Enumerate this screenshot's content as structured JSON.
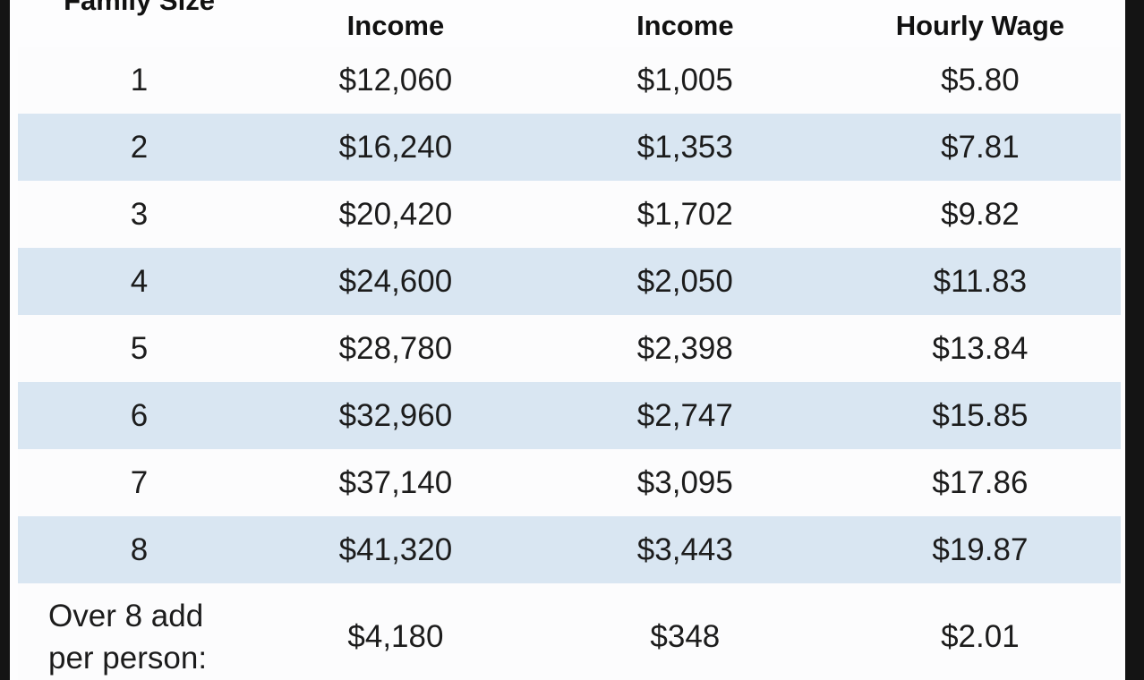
{
  "chart_data": {
    "type": "table",
    "title": "",
    "columns": [
      "Family Size",
      "Income",
      "Income",
      "Hourly Wage"
    ],
    "rows": [
      [
        "1",
        "$12,060",
        "$1,005",
        "$5.80"
      ],
      [
        "2",
        "$16,240",
        "$1,353",
        "$7.81"
      ],
      [
        "3",
        "$20,420",
        "$1,702",
        "$9.82"
      ],
      [
        "4",
        "$24,600",
        "$2,050",
        "$11.83"
      ],
      [
        "5",
        "$28,780",
        "$2,398",
        "$13.84"
      ],
      [
        "6",
        "$32,960",
        "$2,747",
        "$15.85"
      ],
      [
        "7",
        "$37,140",
        "$3,095",
        "$17.86"
      ],
      [
        "8",
        "$41,320",
        "$3,443",
        "$19.87"
      ],
      [
        "Over 8 add per person:",
        "$4,180",
        "$348",
        "$2.01"
      ]
    ],
    "layout_hints": {
      "striped_rows": "even family sizes highlighted",
      "header_cropped_at_top": true
    }
  },
  "colors": {
    "stripe": "#d9e6f2",
    "row-bg": "#fcfcfd",
    "frame": "#141414",
    "text": "#1c1c1c"
  }
}
